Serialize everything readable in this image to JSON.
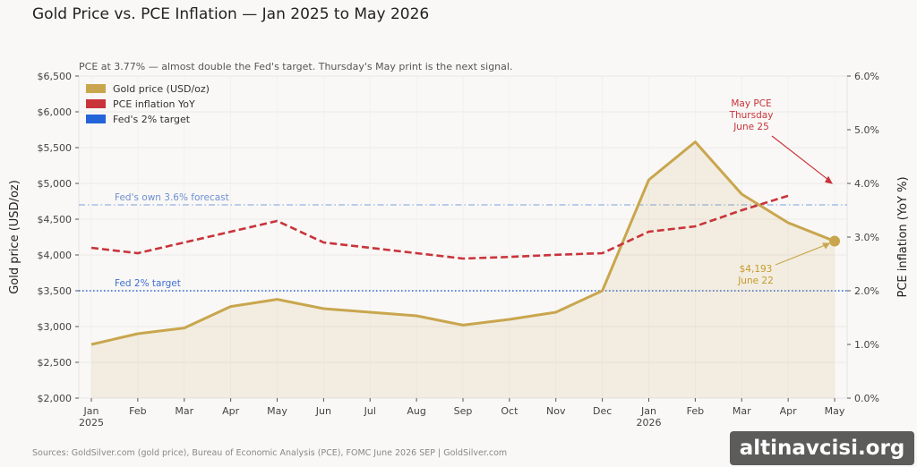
{
  "title": "Gold Price vs. PCE Inflation — Jan 2025 to May 2026",
  "subtitle": "PCE at 3.77% — almost double the Fed's target. Thursday's May print is the next signal.",
  "footer": "Sources: GoldSilver.com (gold price), Bureau of Economic Analysis (PCE), FOMC June 2026 SEP  |  GoldSilver.com",
  "watermark": "altinavcisi.org",
  "colors": {
    "gold": "#c9a64e",
    "pce": "#c9343b",
    "fed": "#2563d9",
    "forecast": "#7a9fe0"
  },
  "chart_data": {
    "type": "line",
    "x": [
      "Jan",
      "Feb",
      "Mar",
      "Apr",
      "May",
      "Jun",
      "Jul",
      "Aug",
      "Sep",
      "Oct",
      "Nov",
      "Dec",
      "Jan",
      "Feb",
      "Mar",
      "Apr",
      "May"
    ],
    "x_year_labels": [
      {
        "index": 0,
        "label": "2025"
      },
      {
        "index": 12,
        "label": "2026"
      }
    ],
    "ylabel": "Gold price (USD/oz)",
    "y2label": "PCE inflation (YoY %)",
    "ylim": [
      2000,
      6500
    ],
    "y_ticks": [
      "$2,000",
      "$2,500",
      "$3,000",
      "$3,500",
      "$4,000",
      "$4,500",
      "$5,000",
      "$5,500",
      "$6,000",
      "$6,500"
    ],
    "y2lim": [
      0,
      6
    ],
    "y2_ticks": [
      "0.0%",
      "1.0%",
      "2.0%",
      "3.0%",
      "4.0%",
      "5.0%",
      "6.0%"
    ],
    "grid": true,
    "legend_position": "top-left",
    "series": [
      {
        "name": "Gold price (USD/oz)",
        "axis": "left",
        "style": "solid-area",
        "values": [
          2750,
          2900,
          2980,
          3280,
          3380,
          3250,
          3200,
          3150,
          3020,
          3100,
          3200,
          3500,
          5050,
          5580,
          4850,
          4450,
          4193
        ]
      },
      {
        "name": "PCE inflation YoY",
        "axis": "right",
        "style": "dashed",
        "values": [
          2.8,
          2.7,
          2.9,
          3.1,
          3.3,
          2.9,
          2.8,
          2.7,
          2.6,
          2.63,
          2.67,
          2.7,
          3.1,
          3.2,
          3.5,
          3.77,
          null
        ]
      }
    ],
    "legend_extra": "Fed's 2% target",
    "reference_lines": [
      {
        "label": "Fed 2% target",
        "axis": "right",
        "value": 2.0,
        "style": "dotted"
      },
      {
        "label": "Fed's own 3.6% forecast",
        "axis": "right",
        "value": 3.6,
        "style": "dash-dot"
      }
    ],
    "annotations": [
      {
        "text_lines": [
          "$4,193",
          "June 22"
        ],
        "x_index": 16,
        "series": "gold"
      },
      {
        "text_lines": [
          "May PCE",
          "Thursday",
          "June 25"
        ],
        "x_index": 16,
        "series": "pce"
      }
    ]
  }
}
